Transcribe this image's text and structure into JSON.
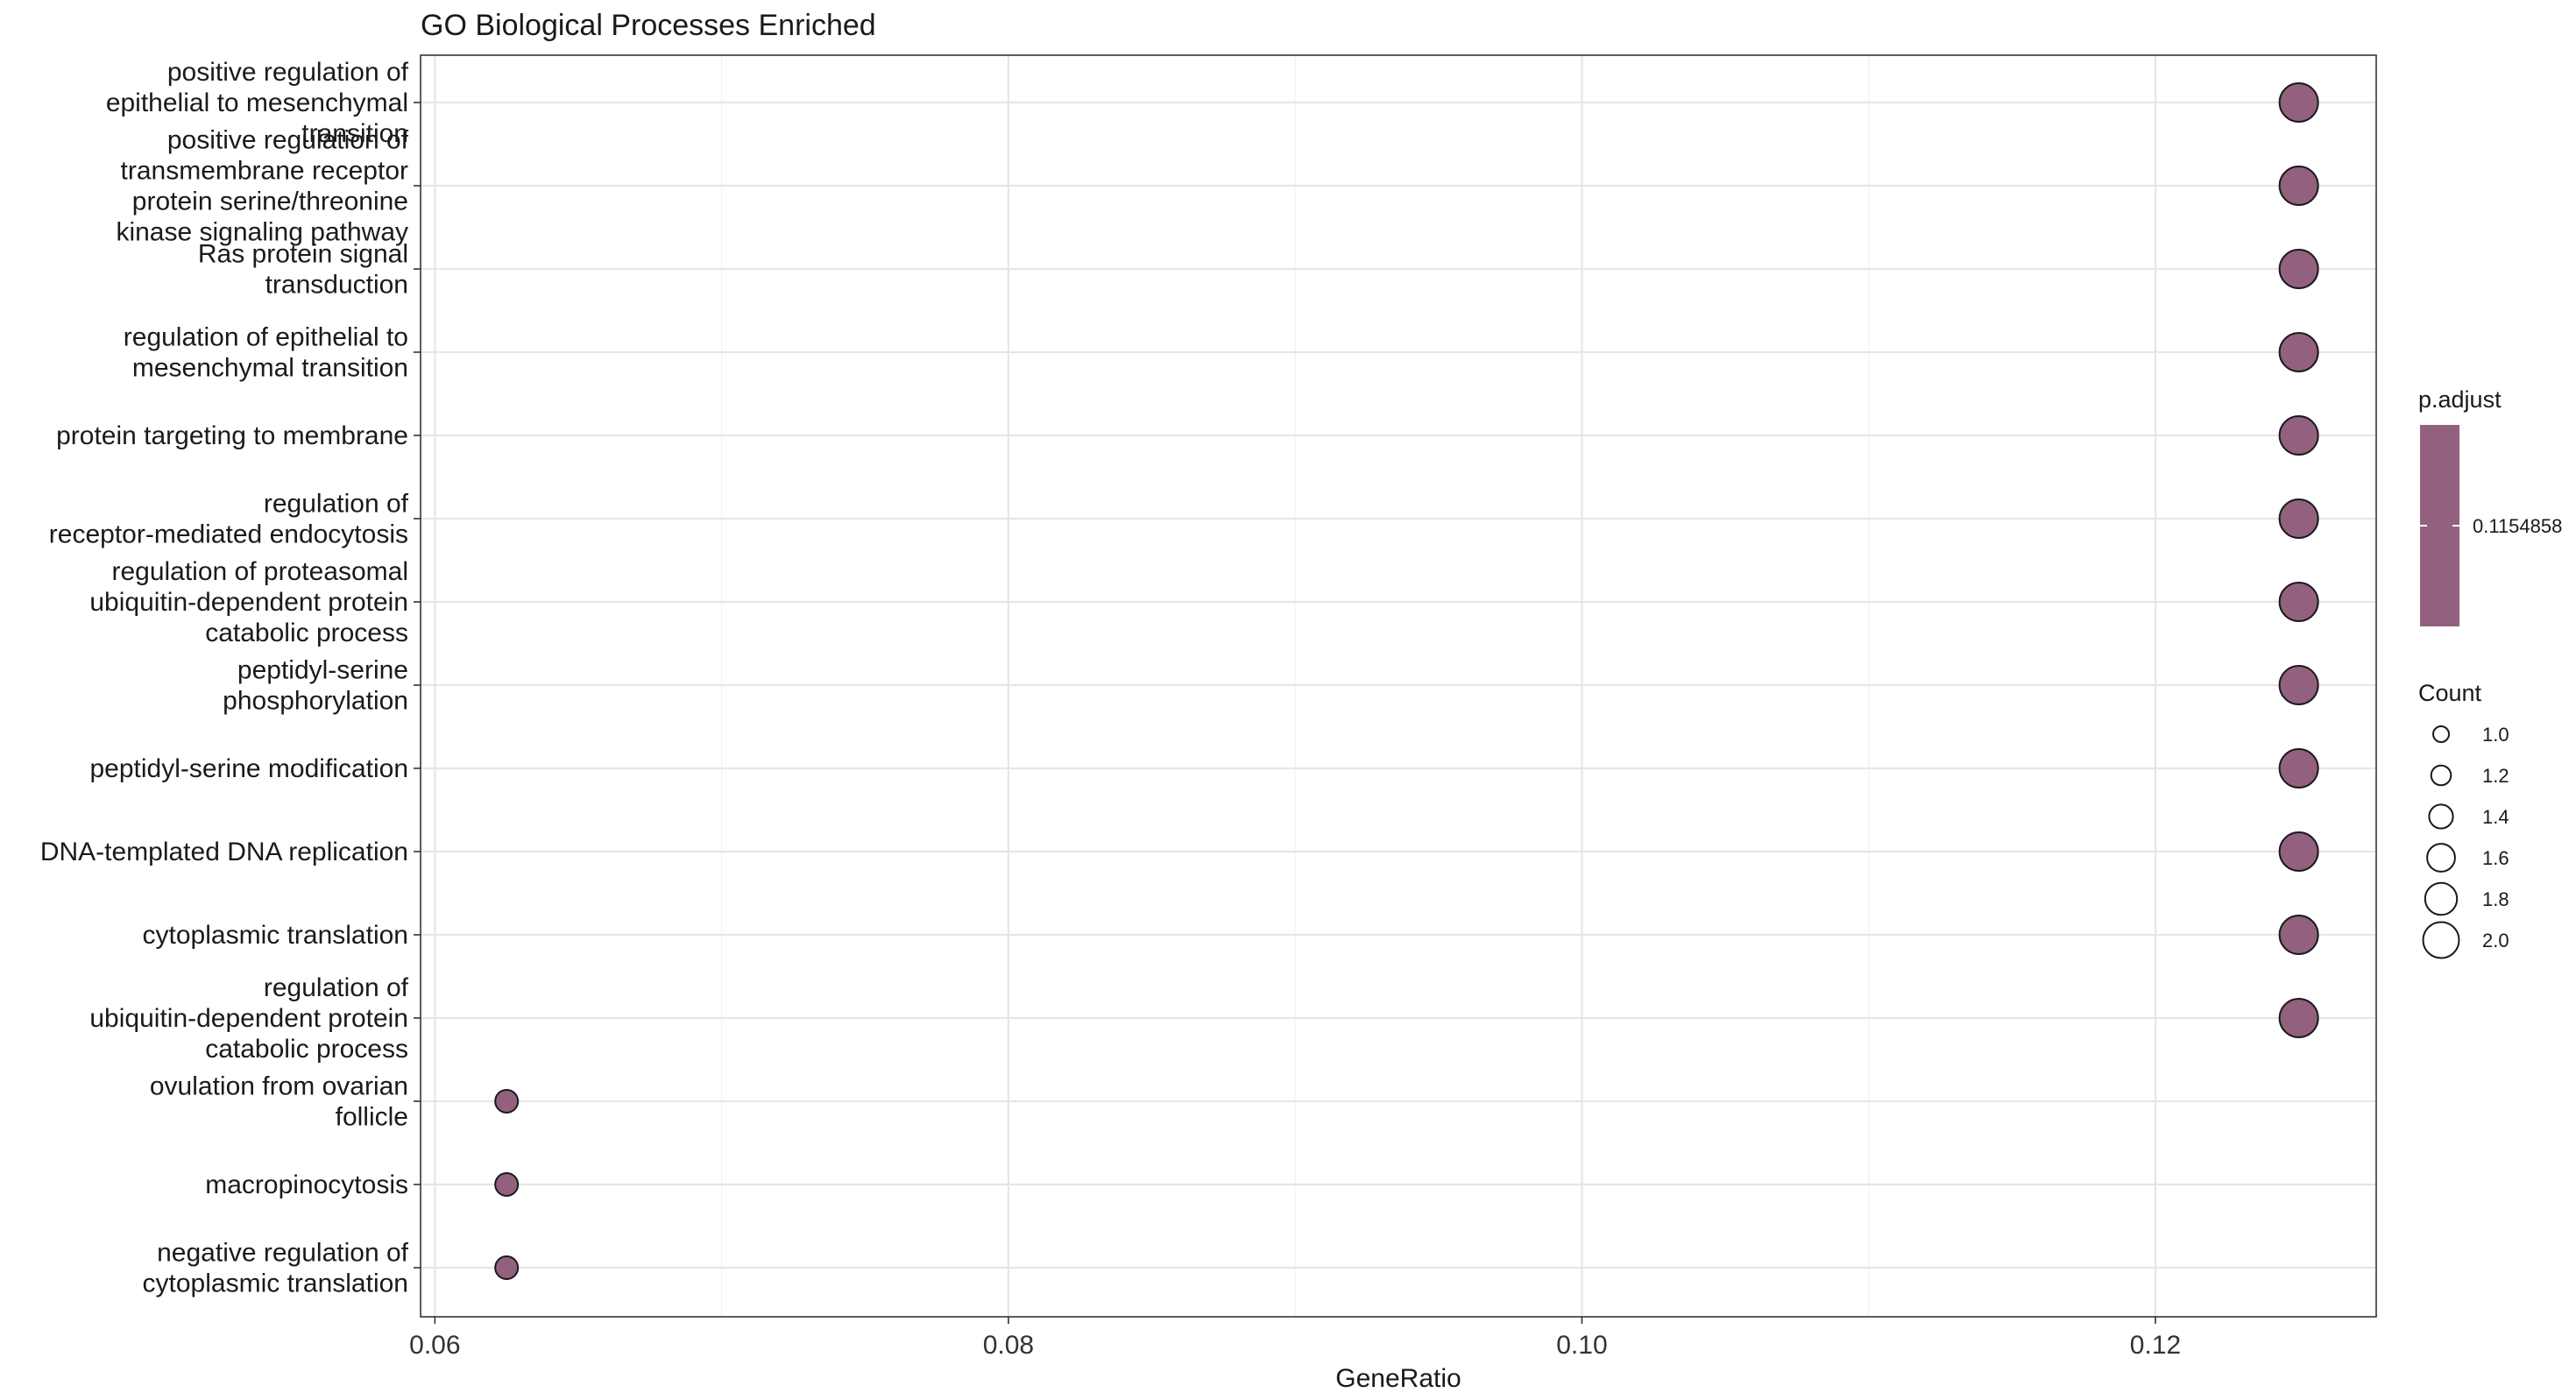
{
  "chart_data": {
    "type": "scatter",
    "title": "GO Biological Processes Enriched",
    "xlabel": "GeneRatio",
    "ylabel": "",
    "xlim": [
      0.0595,
      0.1277
    ],
    "xticks": [
      "0.06",
      "0.08",
      "0.10",
      "0.12"
    ],
    "xtick_values": [
      0.06,
      0.08,
      0.1,
      0.12
    ],
    "grid": true,
    "point_color": "#936080",
    "point_stroke": "#1a1a1a",
    "categories": [
      {
        "lines": [
          "positive regulation of",
          "epithelial to mesenchymal",
          "transition"
        ]
      },
      {
        "lines": [
          "positive regulation of",
          "transmembrane receptor",
          "protein serine/threonine",
          "kinase signaling pathway"
        ]
      },
      {
        "lines": [
          "Ras protein signal",
          "transduction"
        ]
      },
      {
        "lines": [
          "regulation of epithelial to",
          "mesenchymal transition"
        ]
      },
      {
        "lines": [
          "protein targeting to membrane"
        ]
      },
      {
        "lines": [
          "regulation of",
          "receptor-mediated endocytosis"
        ]
      },
      {
        "lines": [
          "regulation of proteasomal",
          "ubiquitin-dependent protein",
          "catabolic process"
        ]
      },
      {
        "lines": [
          "peptidyl-serine",
          "phosphorylation"
        ]
      },
      {
        "lines": [
          "peptidyl-serine modification"
        ]
      },
      {
        "lines": [
          "DNA-templated DNA replication"
        ]
      },
      {
        "lines": [
          "cytoplasmic translation"
        ]
      },
      {
        "lines": [
          "regulation of",
          "ubiquitin-dependent protein",
          "catabolic process"
        ]
      },
      {
        "lines": [
          "ovulation from ovarian",
          "follicle"
        ]
      },
      {
        "lines": [
          "macropinocytosis"
        ]
      },
      {
        "lines": [
          "negative regulation of",
          "cytoplasmic translation"
        ]
      }
    ],
    "points": [
      {
        "x": 0.125,
        "count": 2,
        "p_adjust": 0.1154858
      },
      {
        "x": 0.125,
        "count": 2,
        "p_adjust": 0.1154858
      },
      {
        "x": 0.125,
        "count": 2,
        "p_adjust": 0.1154858
      },
      {
        "x": 0.125,
        "count": 2,
        "p_adjust": 0.1154858
      },
      {
        "x": 0.125,
        "count": 2,
        "p_adjust": 0.1154858
      },
      {
        "x": 0.125,
        "count": 2,
        "p_adjust": 0.1154858
      },
      {
        "x": 0.125,
        "count": 2,
        "p_adjust": 0.1154858
      },
      {
        "x": 0.125,
        "count": 2,
        "p_adjust": 0.1154858
      },
      {
        "x": 0.125,
        "count": 2,
        "p_adjust": 0.1154858
      },
      {
        "x": 0.125,
        "count": 2,
        "p_adjust": 0.1154858
      },
      {
        "x": 0.125,
        "count": 2,
        "p_adjust": 0.1154858
      },
      {
        "x": 0.125,
        "count": 2,
        "p_adjust": 0.1154858
      },
      {
        "x": 0.0625,
        "count": 1,
        "p_adjust": 0.1154858
      },
      {
        "x": 0.0625,
        "count": 1,
        "p_adjust": 0.1154858
      },
      {
        "x": 0.0625,
        "count": 1,
        "p_adjust": 0.1154858
      }
    ],
    "legend": {
      "color": {
        "title": "p.adjust",
        "label": "0.1154858",
        "color": "#936080"
      },
      "size": {
        "title": "Count",
        "entries": [
          {
            "label": "1.0",
            "value": 1.0
          },
          {
            "label": "1.2",
            "value": 1.2
          },
          {
            "label": "1.4",
            "value": 1.4
          },
          {
            "label": "1.6",
            "value": 1.6
          },
          {
            "label": "1.8",
            "value": 1.8
          },
          {
            "label": "2.0",
            "value": 2.0
          }
        ]
      },
      "placement": "right"
    }
  }
}
